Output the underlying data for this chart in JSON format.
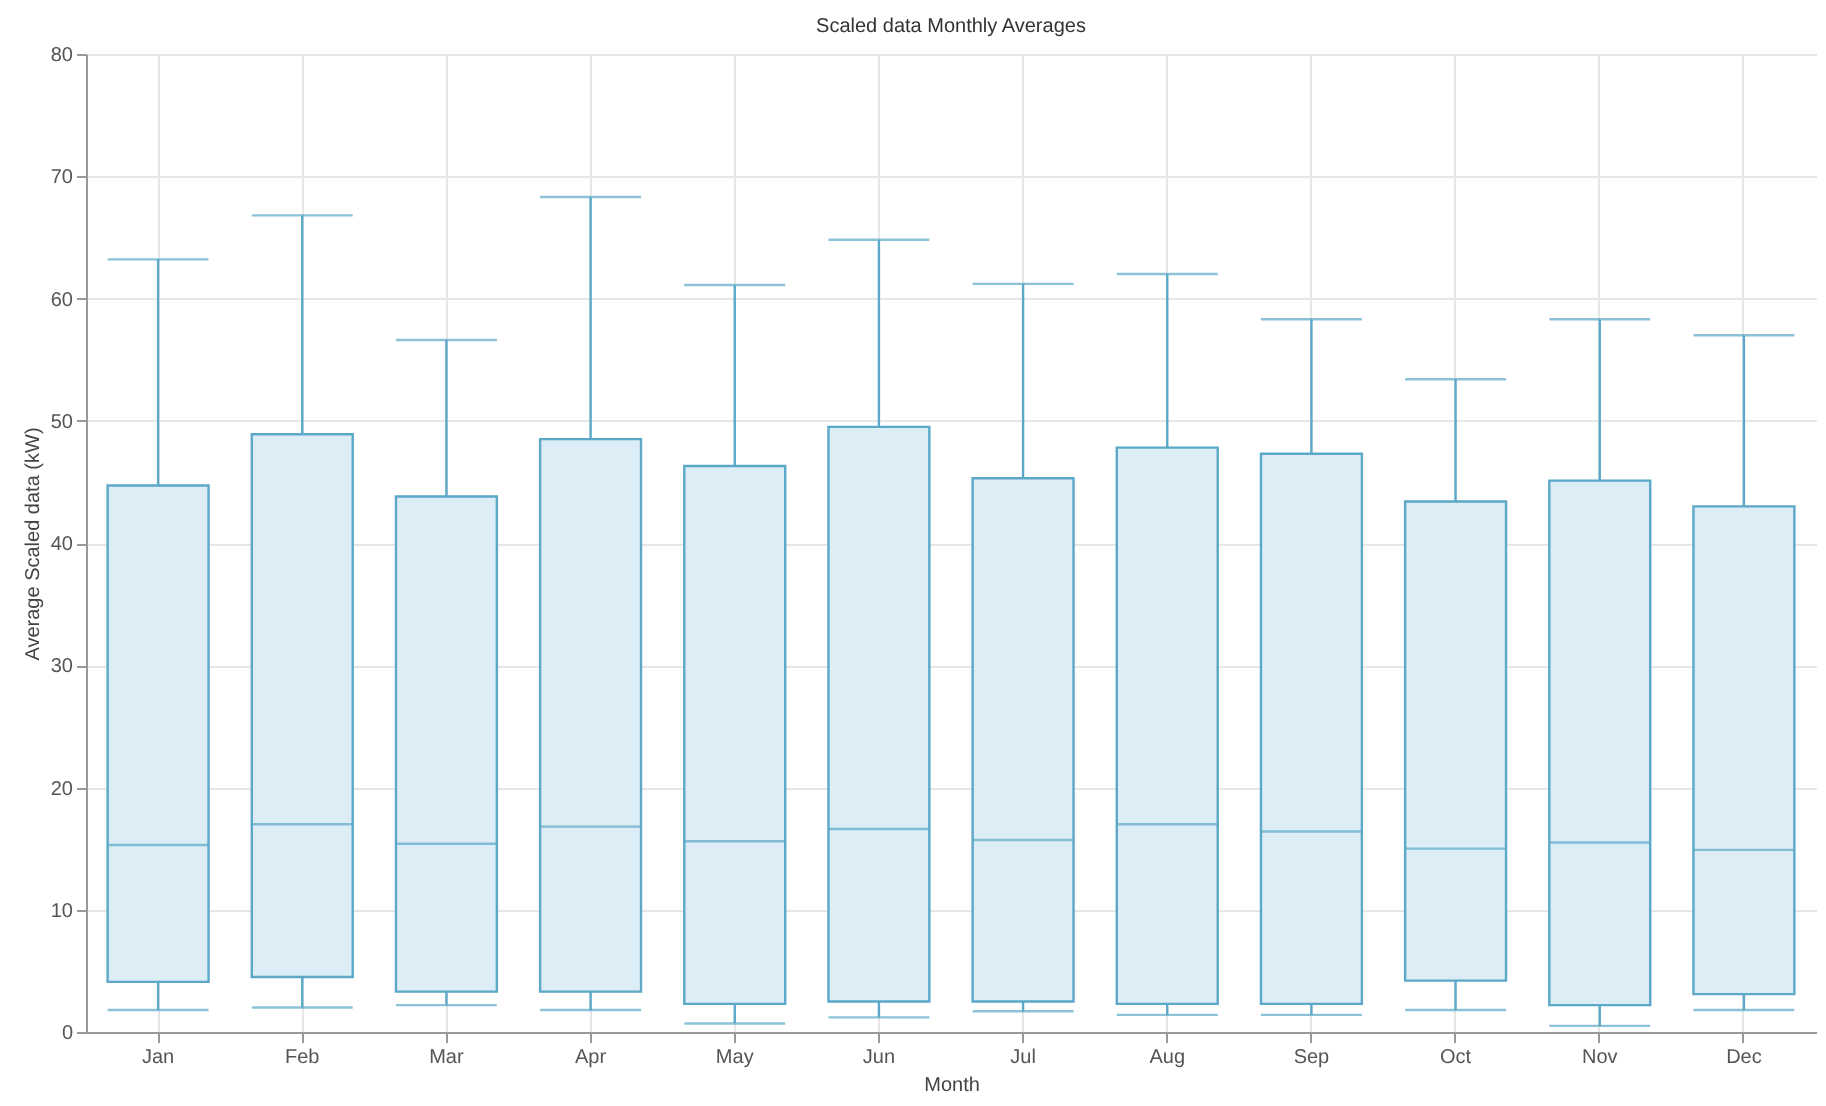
{
  "chart_data": {
    "type": "box",
    "title": "Scaled data Monthly Averages",
    "xlabel": "Month",
    "ylabel": "Average Scaled data (kW)",
    "categories": [
      "Jan",
      "Feb",
      "Mar",
      "Apr",
      "May",
      "Jun",
      "Jul",
      "Aug",
      "Sep",
      "Oct",
      "Nov",
      "Dec"
    ],
    "boxes": [
      {
        "low": 1.8,
        "q1": 4.1,
        "median": 15.3,
        "q3": 44.7,
        "high": 63.2
      },
      {
        "low": 2.0,
        "q1": 4.5,
        "median": 17.0,
        "q3": 48.9,
        "high": 66.8
      },
      {
        "low": 2.2,
        "q1": 3.3,
        "median": 15.4,
        "q3": 43.8,
        "high": 56.6
      },
      {
        "low": 1.8,
        "q1": 3.3,
        "median": 16.8,
        "q3": 48.5,
        "high": 68.3
      },
      {
        "low": 0.7,
        "q1": 2.3,
        "median": 15.6,
        "q3": 46.3,
        "high": 61.1
      },
      {
        "low": 1.2,
        "q1": 2.5,
        "median": 16.6,
        "q3": 49.5,
        "high": 64.8
      },
      {
        "low": 1.7,
        "q1": 2.5,
        "median": 15.7,
        "q3": 45.3,
        "high": 61.2
      },
      {
        "low": 1.4,
        "q1": 2.3,
        "median": 17.0,
        "q3": 47.8,
        "high": 62.0
      },
      {
        "low": 1.4,
        "q1": 2.3,
        "median": 16.4,
        "q3": 47.3,
        "high": 58.3
      },
      {
        "low": 1.8,
        "q1": 4.2,
        "median": 15.0,
        "q3": 43.4,
        "high": 53.4
      },
      {
        "low": 0.5,
        "q1": 2.2,
        "median": 15.5,
        "q3": 45.1,
        "high": 58.3
      },
      {
        "low": 1.8,
        "q1": 3.1,
        "median": 14.9,
        "q3": 43.0,
        "high": 57.0
      }
    ],
    "color": "#5ba8c8",
    "ylim": [
      0,
      80
    ],
    "yticks": [
      0,
      10,
      20,
      30,
      40,
      50,
      60,
      70,
      80
    ],
    "grid": true
  }
}
